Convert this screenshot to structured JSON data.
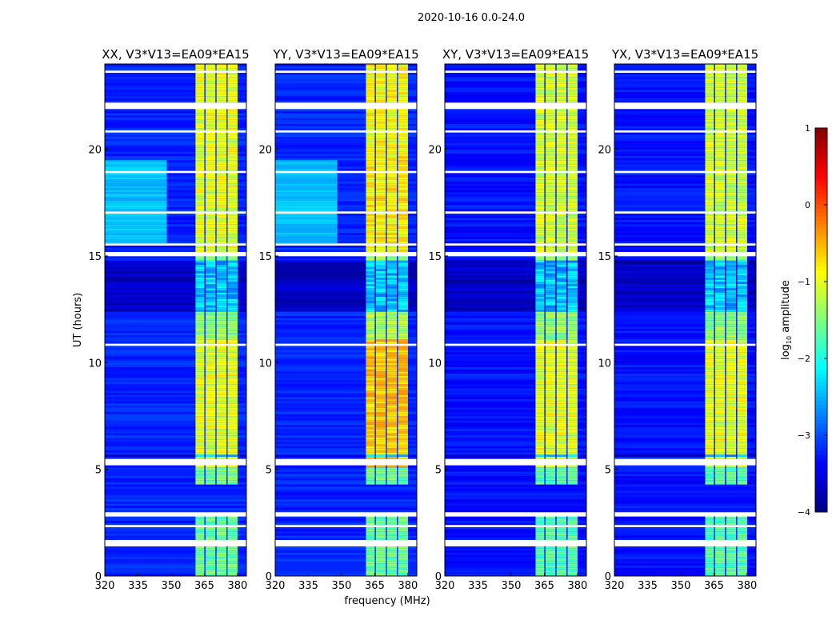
{
  "chart_data": {
    "type": "heatmap",
    "suptitle": "2020-10-16 0.0-24.0",
    "xlabel": "frequency (MHz)",
    "ylabel": "UT (hours)",
    "xlim": [
      320,
      384
    ],
    "ylim": [
      0,
      24
    ],
    "xticks": [
      320,
      335,
      350,
      365,
      380
    ],
    "yticks": [
      0,
      5,
      10,
      15,
      20
    ],
    "colorbar": {
      "label": "log10 amplitude",
      "label_base": "log",
      "label_sub": "10",
      "label_rest": " amplitude",
      "range": [
        -4,
        1
      ],
      "ticks": [
        "1",
        "0",
        "−1",
        "−2",
        "−3",
        "−4"
      ],
      "tick_values": [
        1,
        0,
        -1,
        -2,
        -3,
        -4
      ],
      "colormap": "jet"
    },
    "band_channels_mhz": [
      [
        361,
        365
      ],
      [
        365.5,
        370
      ],
      [
        370.5,
        375
      ],
      [
        375.5,
        380
      ]
    ],
    "flagged_ut": [
      [
        0.4,
        0.45
      ],
      [
        1.45,
        1.7
      ],
      [
        2.35,
        2.45
      ],
      [
        2.85,
        3.0
      ],
      [
        5.2,
        5.5
      ],
      [
        10.75,
        10.9
      ],
      [
        15.0,
        15.15
      ],
      [
        15.5,
        15.55
      ],
      [
        17.0,
        17.05
      ],
      [
        18.9,
        19.0
      ],
      [
        19.6,
        19.65
      ],
      [
        20.85,
        20.95
      ],
      [
        21.9,
        22.25
      ],
      [
        23.3,
        23.35
      ],
      [
        23.6,
        23.7
      ]
    ],
    "dark_ut": [
      [
        12.4,
        14.8
      ],
      [
        5.55,
        5.7
      ],
      [
        0.1,
        0.15
      ]
    ],
    "panels": [
      {
        "title": "XX, V3*V13=EA09*EA15",
        "background": -3.2,
        "cyan_region": true,
        "band_segments": [
          {
            "ut": [
              0,
              5
            ],
            "amp": -1.6
          },
          {
            "ut": [
              5,
              11
            ],
            "amp": -1.0
          },
          {
            "ut": [
              11,
              15
            ],
            "amp": -1.4
          },
          {
            "ut": [
              15,
              20
            ],
            "amp": -1.0
          },
          {
            "ut": [
              20,
              24
            ],
            "amp": -1.0
          }
        ]
      },
      {
        "title": "YY, V3*V13=EA09*EA15",
        "background": -3.2,
        "cyan_region": true,
        "band_segments": [
          {
            "ut": [
              0,
              5
            ],
            "amp": -1.6
          },
          {
            "ut": [
              5,
              11
            ],
            "amp": -0.6
          },
          {
            "ut": [
              11,
              15
            ],
            "amp": -1.3
          },
          {
            "ut": [
              15,
              20
            ],
            "amp": -0.8
          },
          {
            "ut": [
              20,
              24
            ],
            "amp": -0.9
          }
        ]
      },
      {
        "title": "XY, V3*V13=EA09*EA15",
        "background": -3.3,
        "cyan_region": false,
        "band_segments": [
          {
            "ut": [
              0,
              5
            ],
            "amp": -1.7
          },
          {
            "ut": [
              5,
              11
            ],
            "amp": -1.0
          },
          {
            "ut": [
              11,
              15
            ],
            "amp": -1.4
          },
          {
            "ut": [
              15,
              20
            ],
            "amp": -1.1
          },
          {
            "ut": [
              20,
              24
            ],
            "amp": -1.1
          }
        ]
      },
      {
        "title": "YX, V3*V13=EA09*EA15",
        "background": -3.3,
        "cyan_region": false,
        "band_segments": [
          {
            "ut": [
              0,
              5
            ],
            "amp": -1.7
          },
          {
            "ut": [
              5,
              11
            ],
            "amp": -1.0
          },
          {
            "ut": [
              11,
              15
            ],
            "amp": -1.4
          },
          {
            "ut": [
              15,
              20
            ],
            "amp": -1.1
          },
          {
            "ut": [
              20,
              24
            ],
            "amp": -1.1
          }
        ]
      }
    ]
  }
}
